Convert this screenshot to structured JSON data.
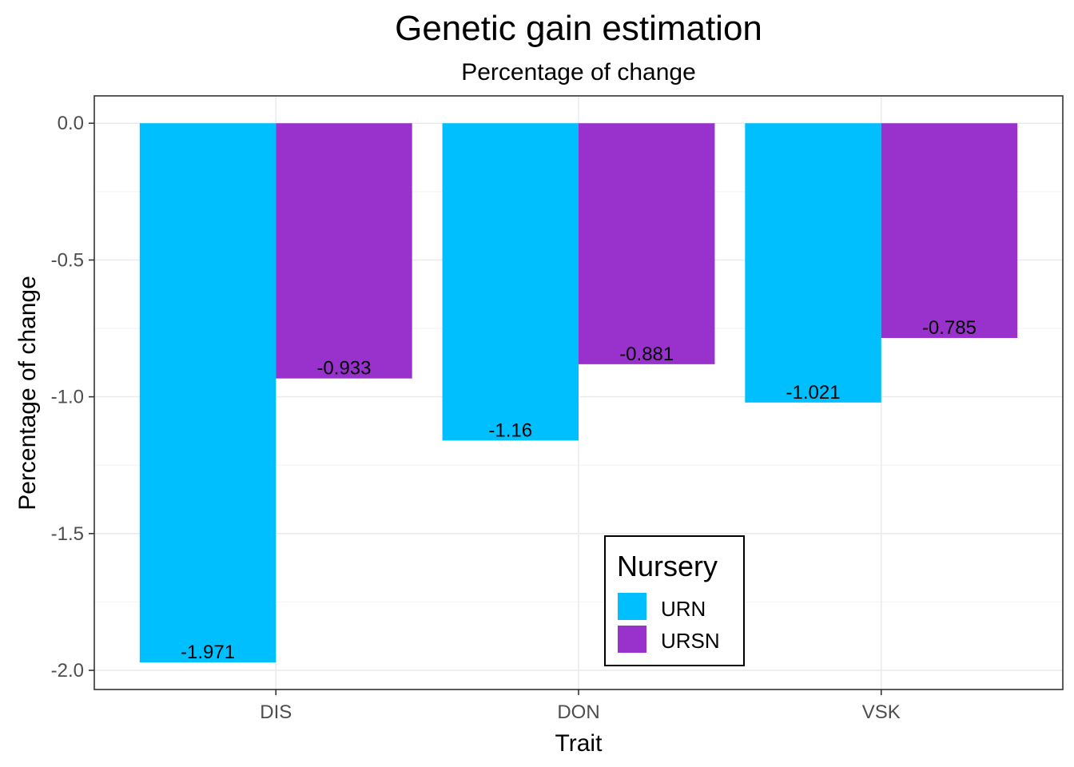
{
  "chart_data": {
    "type": "bar",
    "title": "Genetic gain estimation",
    "subtitle": "Percentage of change",
    "xlabel": "Trait",
    "ylabel": "Percentage of change",
    "categories": [
      "DIS",
      "DON",
      "VSK"
    ],
    "series": [
      {
        "name": "URN",
        "color": "#00BFFF",
        "values": [
          -1.971,
          -1.16,
          -1.021
        ],
        "labels": [
          "-1.971",
          "-1.16",
          "-1.021"
        ]
      },
      {
        "name": "URSN",
        "color": "#9932CC",
        "values": [
          -0.933,
          -0.881,
          -0.785
        ],
        "labels": [
          "-0.933",
          "-0.881",
          "-0.785"
        ]
      }
    ],
    "ylim": [
      -2.07,
      0.1
    ],
    "yticks": [
      0.0,
      -0.5,
      -1.0,
      -1.5,
      -2.0
    ],
    "ytick_labels": [
      "0.0",
      "-0.5",
      "-1.0",
      "-1.5",
      "-2.0"
    ],
    "grid": true,
    "legend": {
      "title": "Nursery",
      "position": "inside-bottom-center"
    }
  }
}
